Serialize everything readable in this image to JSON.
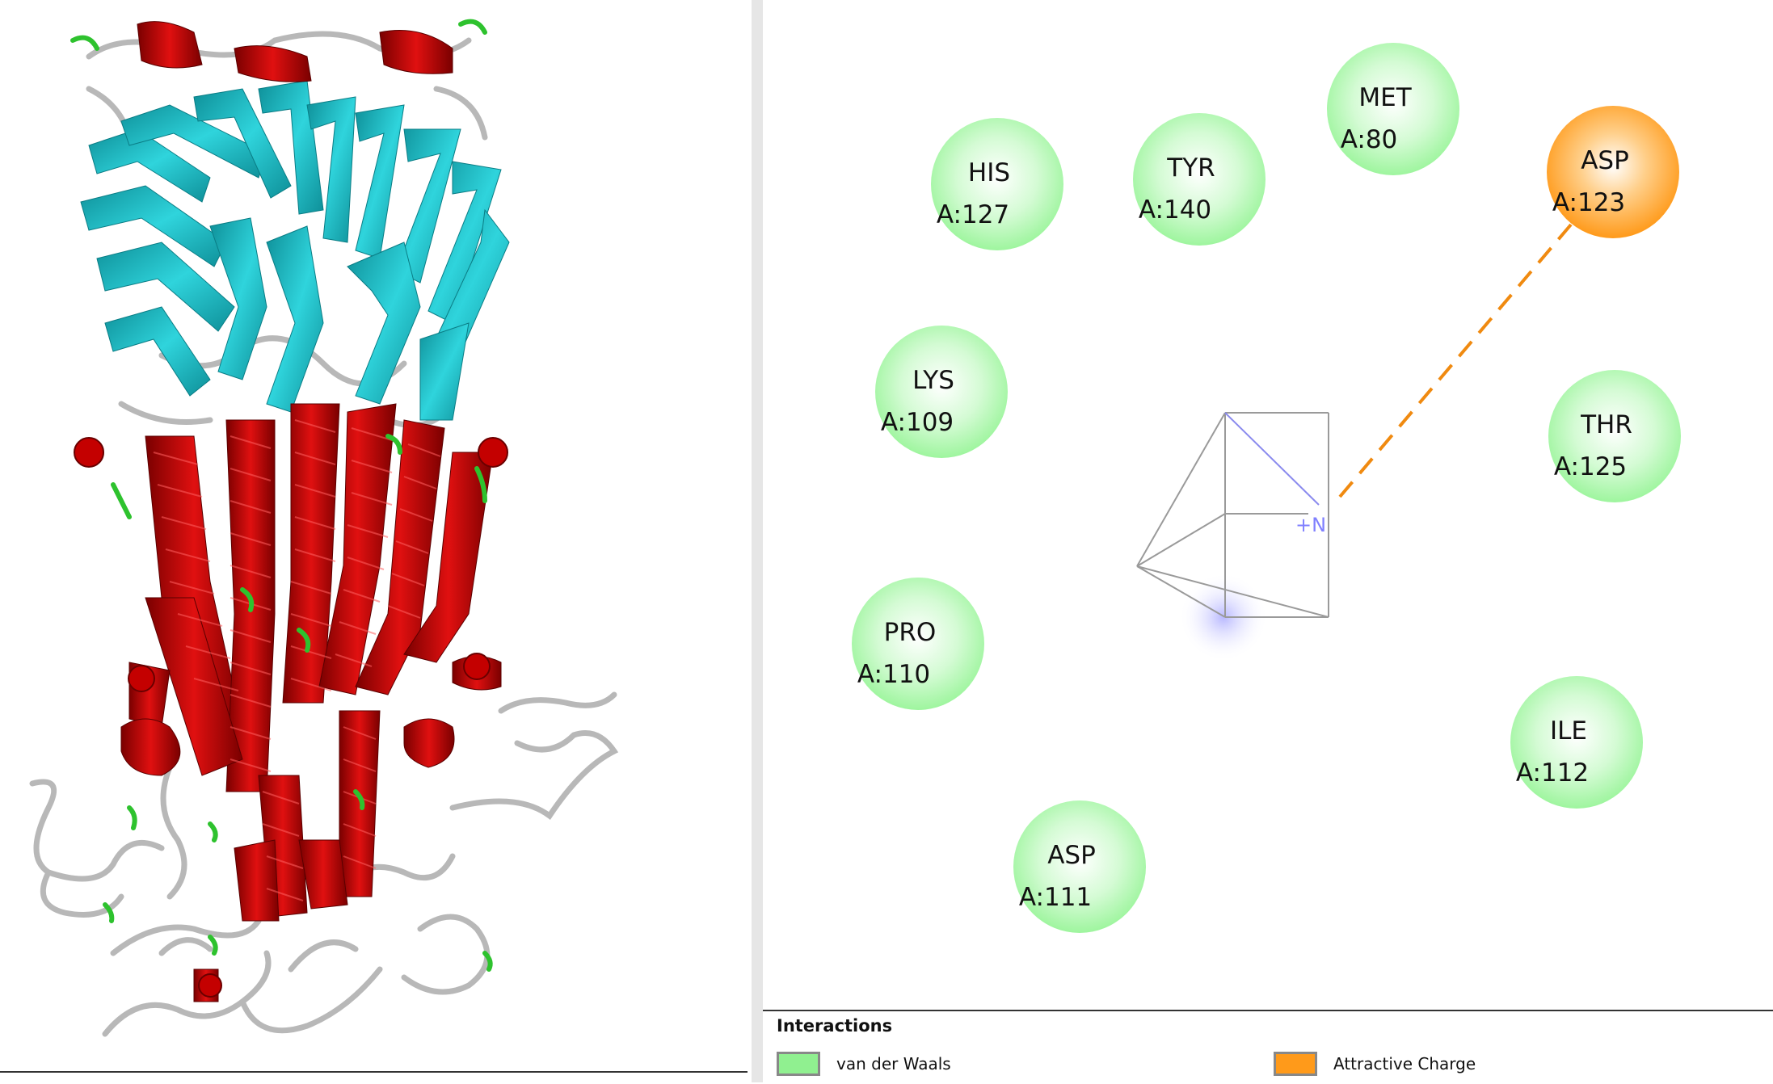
{
  "residues": [
    {
      "name": "HIS",
      "id": "A:127",
      "type": "vdw"
    },
    {
      "name": "TYR",
      "id": "A:140",
      "type": "vdw"
    },
    {
      "name": "MET",
      "id": "A:80",
      "type": "vdw"
    },
    {
      "name": "ASP",
      "id": "A:123",
      "type": "charge"
    },
    {
      "name": "LYS",
      "id": "A:109",
      "type": "vdw"
    },
    {
      "name": "THR",
      "id": "A:125",
      "type": "vdw"
    },
    {
      "name": "PRO",
      "id": "A:110",
      "type": "vdw"
    },
    {
      "name": "ILE",
      "id": "A:112",
      "type": "vdw"
    },
    {
      "name": "ASP",
      "id": "A:111",
      "type": "vdw"
    }
  ],
  "ligand": {
    "atom_label": "+N"
  },
  "legend": {
    "title": "Interactions",
    "items": [
      {
        "label": "van der Waals",
        "color": "#90f090"
      },
      {
        "label": "Attractive Charge",
        "color": "#ff9a1a"
      }
    ]
  },
  "colors": {
    "vdw": "#9ef59e",
    "charge": "#ff9a1a",
    "helix": "#c40000",
    "sheet": "#1fc2cc",
    "coil": "#b8b8b8",
    "turn": "#2ec22e"
  }
}
